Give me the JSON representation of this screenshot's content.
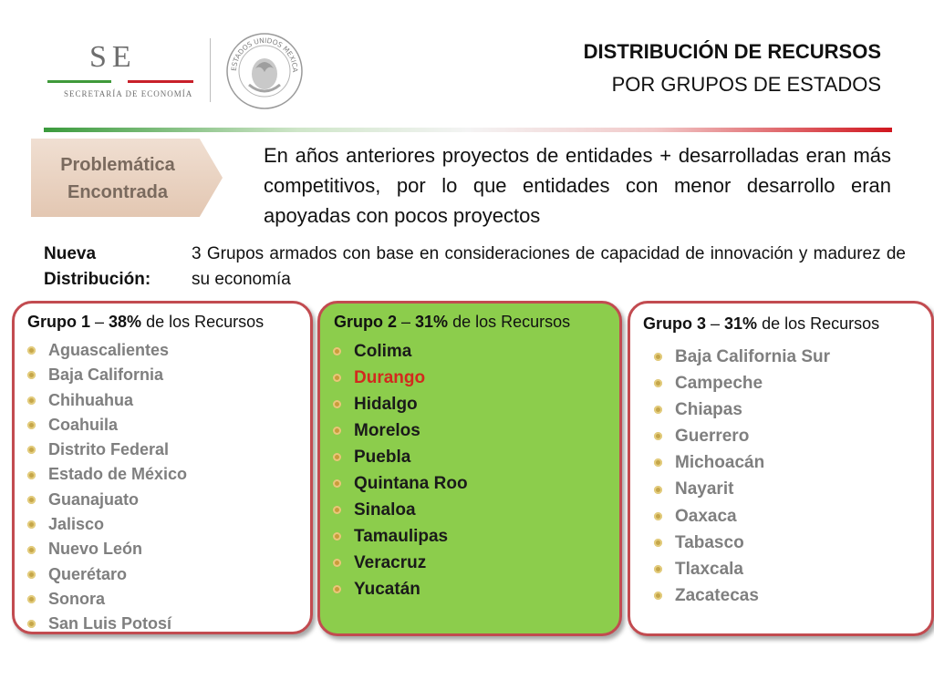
{
  "header": {
    "logo_text": "SE",
    "logo_subtitle": "SECRETARÍA DE ECONOMÍA",
    "seal_text": "ESTADOS UNIDOS MEXICANOS",
    "title_line1": "DISTRIBUCIÓN DE RECURSOS",
    "title_line2": "POR GRUPOS DE ESTADOS"
  },
  "colors": {
    "accent_green": "#3a9a3c",
    "accent_red": "#d0161e",
    "group_border": "#c24b50",
    "group2_fill": "#8ccd4c",
    "highlight_red": "#d22a1e"
  },
  "problem": {
    "tag_line1": "Problemática",
    "tag_line2": "Encontrada",
    "text": "En años anteriores proyectos de entidades + desarrolladas eran más competitivos, por lo que entidades con menor desarrollo eran apoyadas con pocos proyectos"
  },
  "nueva": {
    "label_line1": "Nueva",
    "label_line2": "Distribución:",
    "text": "3 Grupos armados con base en consideraciones de capacidad de innovación y madurez de su economía"
  },
  "groups": [
    {
      "name": "Grupo 1",
      "dash": " – ",
      "percent": "38%",
      "suffix": " de los Recursos",
      "states": [
        "Aguascalientes",
        "Baja California",
        "Chihuahua",
        "Coahuila",
        "Distrito Federal",
        "Estado de México",
        "Guanajuato",
        "Jalisco",
        "Nuevo León",
        "Querétaro",
        "Sonora",
        "San Luis Potosí"
      ]
    },
    {
      "name": "Grupo 2",
      "dash": " – ",
      "percent": "31%",
      "suffix": " de los Recursos",
      "states": [
        "Colima",
        "Durango",
        "Hidalgo",
        "Morelos",
        "Puebla",
        "Quintana Roo",
        "Sinaloa",
        "Tamaulipas",
        "Veracruz",
        "Yucatán"
      ],
      "highlighted": "Durango"
    },
    {
      "name": "Grupo 3",
      "dash": " – ",
      "percent": "31%",
      "suffix": " de los Recursos",
      "states": [
        "Baja California Sur",
        "Campeche",
        "Chiapas",
        "Guerrero",
        "Michoacán",
        "Nayarit",
        "Oaxaca",
        "Tabasco",
        "Tlaxcala",
        "Zacatecas"
      ]
    }
  ]
}
